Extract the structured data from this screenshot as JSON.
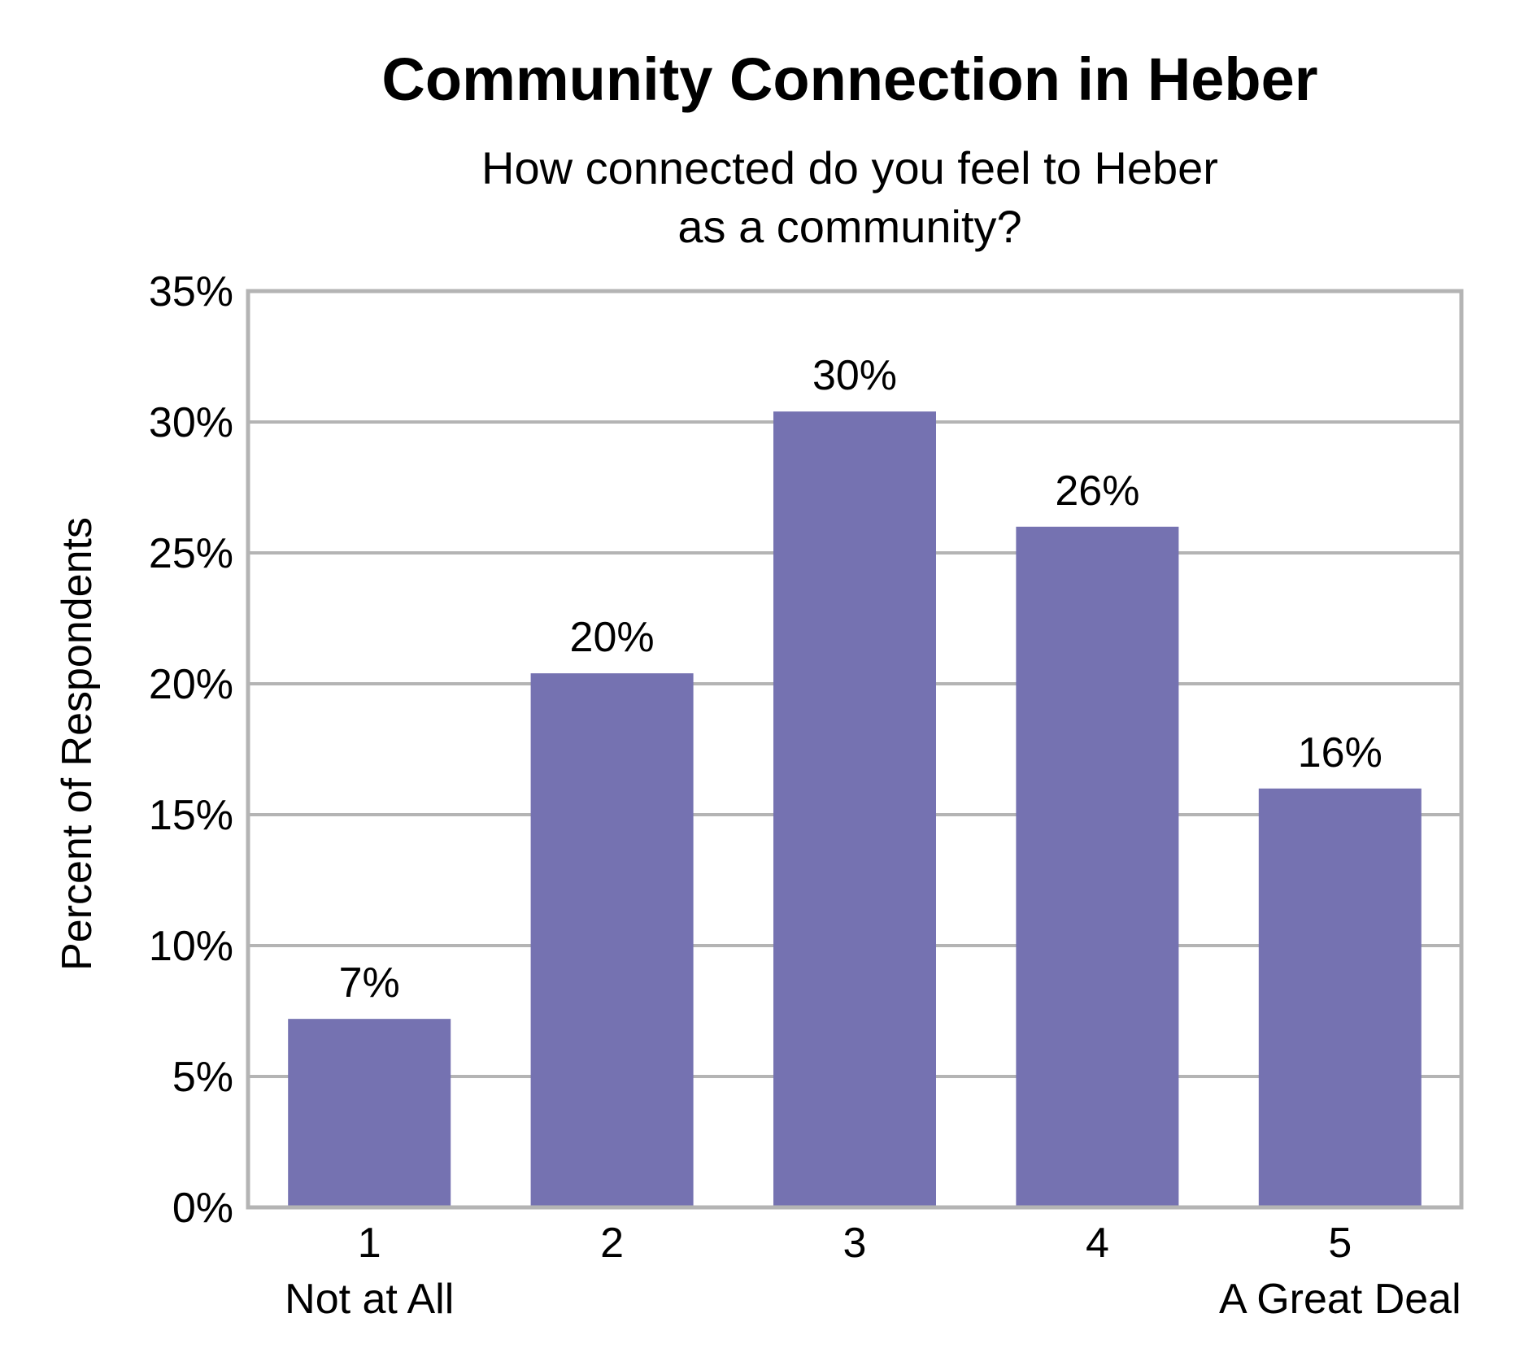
{
  "chart_data": {
    "type": "bar",
    "title": "Community Connection in Heber",
    "subtitle_lines": [
      "How connected do you feel to Heber",
      "as a community?"
    ],
    "ylabel": "Percent of Respondents",
    "xlabel": "",
    "categories": [
      "1",
      "2",
      "3",
      "4",
      "5"
    ],
    "category_sublabels": [
      "Not at All",
      "",
      "",
      "",
      "A Great Deal"
    ],
    "values": [
      7.2,
      20.4,
      30.4,
      26.0,
      16.0
    ],
    "data_labels": [
      "7%",
      "20%",
      "30%",
      "26%",
      "16%"
    ],
    "ylim": [
      0,
      35
    ],
    "yticks": [
      0,
      5,
      10,
      15,
      20,
      25,
      30,
      35
    ],
    "ytick_labels": [
      "0%",
      "5%",
      "10%",
      "15%",
      "20%",
      "25%",
      "30%",
      "35%"
    ],
    "grid": true,
    "legend": "none",
    "colors": {
      "bar": "#7572b1",
      "grid": "#b4b4b4",
      "frame": "#b4b4b4"
    }
  }
}
